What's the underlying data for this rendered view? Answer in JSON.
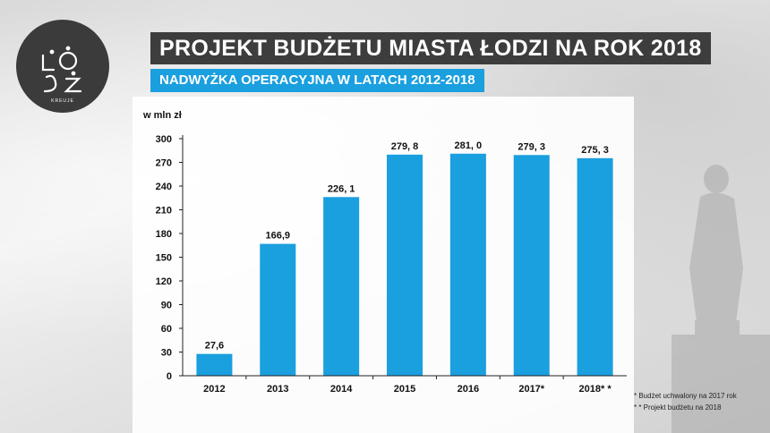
{
  "header": {
    "title": "PROJEKT BUDŻETU MIASTA ŁODZI NA ROK 2018",
    "subtitle": "NADWYŻKA OPERACYJNA W LATACH 2012-2018"
  },
  "logo": {
    "caption": "KREUJE"
  },
  "colors": {
    "bar": "#1a9fdf",
    "title_bg": "#3d3d3d",
    "subtitle_bg": "#1a9fdf"
  },
  "footnotes": [
    "* Budżet uchwalony na 2017 rok",
    "* * Projekt budżetu na 2018"
  ],
  "chart_data": {
    "type": "bar",
    "ylabel": "w mln zł",
    "ylim": [
      0,
      300
    ],
    "yticks": [
      0,
      30,
      60,
      90,
      120,
      150,
      180,
      210,
      240,
      270,
      300
    ],
    "categories": [
      "2012",
      "2013",
      "2014",
      "2015",
      "2016",
      "2017*",
      "2018* *"
    ],
    "values": [
      27.6,
      166.9,
      226.1,
      279.8,
      281.0,
      279.3,
      275.3
    ],
    "data_labels": [
      "27,6",
      "166,9",
      "226, 1",
      "279, 8",
      "281, 0",
      "279, 3",
      "275, 3"
    ],
    "grid": false,
    "legend": "none"
  }
}
